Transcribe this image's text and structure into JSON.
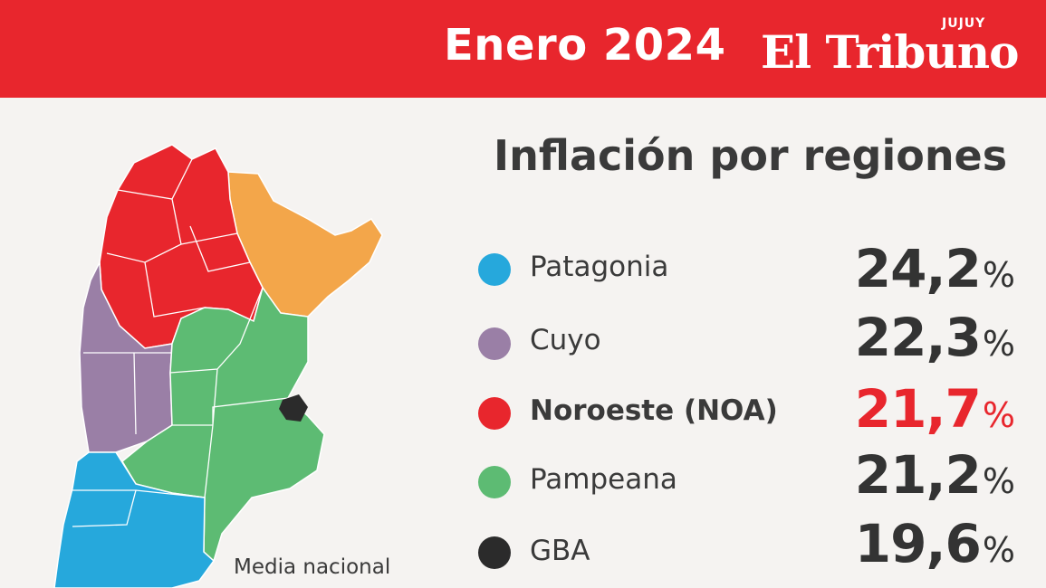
{
  "header": {
    "month_title": "Enero 2024",
    "brand_name": "El Tribuno",
    "brand_edition": "JUJUY",
    "bar_color": "#e8262d"
  },
  "panel": {
    "title": "Inflación por regiones",
    "map_caption": "Media nacional",
    "regions": [
      {
        "label": "Patagonia",
        "value": "24,2",
        "unit": "%",
        "color": "#26a8dc",
        "highlight": false
      },
      {
        "label": "Cuyo",
        "value": "22,3",
        "unit": "%",
        "color": "#9a7fa6",
        "highlight": false
      },
      {
        "label": "Noroeste (NOA)",
        "value": "21,7",
        "unit": "%",
        "color": "#e8262d",
        "highlight": true
      },
      {
        "label": "Pampeana",
        "value": "21,2",
        "unit": "%",
        "color": "#5dbb73",
        "highlight": false
      },
      {
        "label": "GBA",
        "value": "19,6",
        "unit": "%",
        "color": "#2b2b2b",
        "highlight": false
      }
    ]
  }
}
